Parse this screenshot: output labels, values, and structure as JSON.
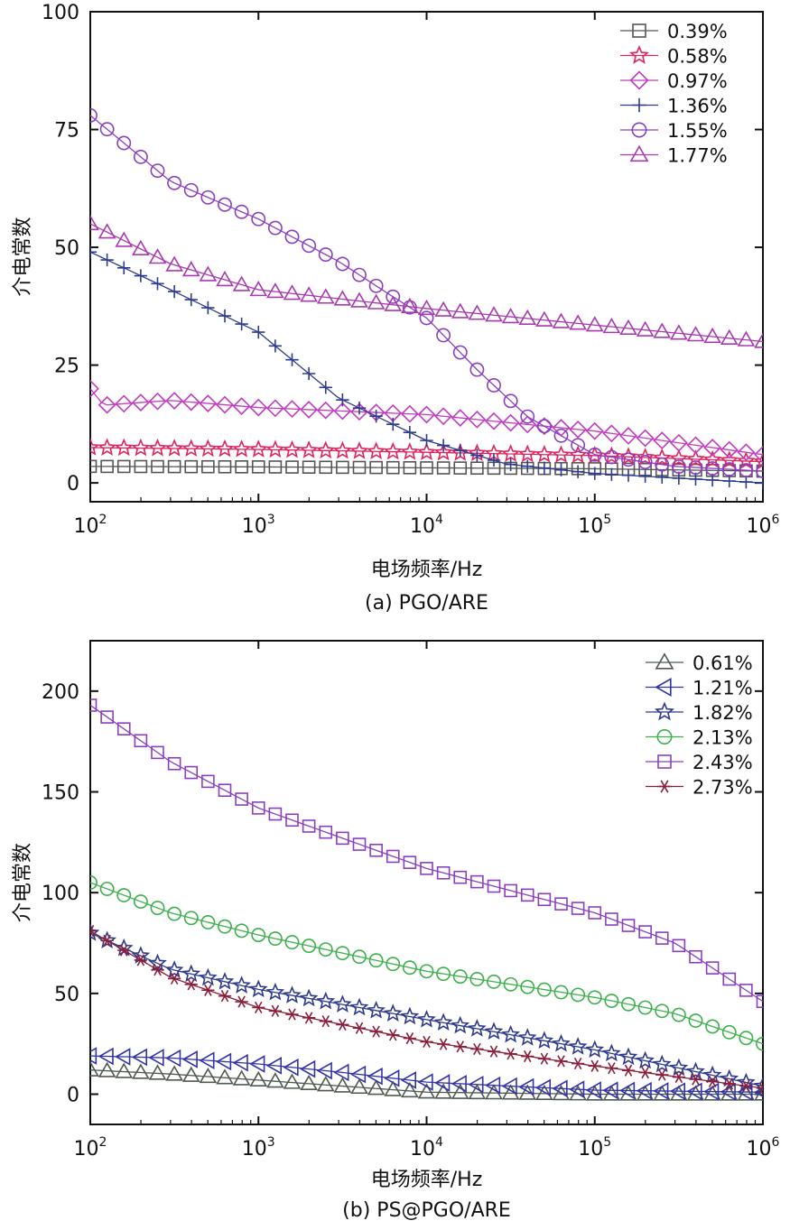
{
  "chart_data": [
    {
      "type": "scatter",
      "caption": "(a) PGO/ARE",
      "xlabel": "电场频率/Hz",
      "ylabel": "介电常数",
      "xscale": "log",
      "xlim": [
        100,
        1000000
      ],
      "ylim": [
        -4,
        100
      ],
      "xticks": [
        {
          "value": 100,
          "base": "10",
          "exp": "2"
        },
        {
          "value": 1000,
          "base": "10",
          "exp": "3"
        },
        {
          "value": 10000,
          "base": "10",
          "exp": "4"
        },
        {
          "value": 100000,
          "base": "10",
          "exp": "5"
        },
        {
          "value": 1000000,
          "base": "10",
          "exp": "6"
        }
      ],
      "yticks": [
        {
          "value": 0,
          "label": "0"
        },
        {
          "value": 25,
          "label": "25"
        },
        {
          "value": 50,
          "label": "50"
        },
        {
          "value": 75,
          "label": "75"
        },
        {
          "value": 100,
          "label": "100"
        }
      ],
      "legend_position": "top-right",
      "series": [
        {
          "name": "0.39%",
          "marker": "square",
          "color": "#555555",
          "points": [
            [
              100,
              3.5
            ],
            [
              1000,
              3.4
            ],
            [
              10000,
              3.2
            ],
            [
              100000,
              3.0
            ],
            [
              1000000,
              2.5
            ]
          ]
        },
        {
          "name": "0.58%",
          "marker": "star",
          "color": "#e0245e",
          "points": [
            [
              100,
              7.5
            ],
            [
              1000,
              7.1
            ],
            [
              10000,
              6.5
            ],
            [
              100000,
              5.8
            ],
            [
              1000000,
              4.5
            ]
          ]
        },
        {
          "name": "0.97%",
          "marker": "diamond",
          "color": "#c03cc0",
          "points": [
            [
              100,
              20
            ],
            [
              120,
              16.5
            ],
            [
              300,
              17.5
            ],
            [
              1000,
              16
            ],
            [
              10000,
              14.5
            ],
            [
              100000,
              11
            ],
            [
              1000000,
              6
            ]
          ]
        },
        {
          "name": "1.36%",
          "marker": "plus",
          "color": "#2e3b8e",
          "points": [
            [
              100,
              49
            ],
            [
              300,
              41
            ],
            [
              1000,
              32
            ],
            [
              3000,
              18
            ],
            [
              10000,
              9
            ],
            [
              30000,
              4
            ],
            [
              100000,
              2
            ],
            [
              1000000,
              0
            ]
          ]
        },
        {
          "name": "1.55%",
          "marker": "circle",
          "color": "#8b3fc0",
          "points": [
            [
              100,
              78
            ],
            [
              300,
              64
            ],
            [
              1000,
              56
            ],
            [
              3000,
              47
            ],
            [
              6000,
              40
            ],
            [
              10000,
              35
            ],
            [
              20000,
              24
            ],
            [
              40000,
              14
            ],
            [
              100000,
              6
            ],
            [
              300000,
              3.5
            ],
            [
              1000000,
              2.5
            ]
          ]
        },
        {
          "name": "1.77%",
          "marker": "triangle",
          "color": "#a83ab0",
          "points": [
            [
              100,
              55
            ],
            [
              300,
              46.5
            ],
            [
              1000,
              41
            ],
            [
              10000,
              37
            ],
            [
              100000,
              33.5
            ],
            [
              1000000,
              30
            ]
          ]
        }
      ]
    },
    {
      "type": "scatter",
      "caption": "(b) PS@PGO/ARE",
      "xlabel": "电场频率/Hz",
      "ylabel": "介电常数",
      "xscale": "log",
      "xlim": [
        100,
        1000000
      ],
      "ylim": [
        -15,
        225
      ],
      "xticks": [
        {
          "value": 100,
          "base": "10",
          "exp": "2"
        },
        {
          "value": 1000,
          "base": "10",
          "exp": "3"
        },
        {
          "value": 10000,
          "base": "10",
          "exp": "4"
        },
        {
          "value": 100000,
          "base": "10",
          "exp": "5"
        },
        {
          "value": 1000000,
          "base": "10",
          "exp": "6"
        }
      ],
      "yticks": [
        {
          "value": 0,
          "label": "0"
        },
        {
          "value": 50,
          "label": "50"
        },
        {
          "value": 100,
          "label": "100"
        },
        {
          "value": 150,
          "label": "150"
        },
        {
          "value": 200,
          "label": "200"
        }
      ],
      "legend_position": "top-right",
      "series": [
        {
          "name": "0.61%",
          "marker": "triangle",
          "color": "#4f5a50",
          "points": [
            [
              100,
              12
            ],
            [
              300,
              10
            ],
            [
              1000,
              7
            ],
            [
              10000,
              1
            ],
            [
              100000,
              0
            ],
            [
              1000000,
              0
            ]
          ]
        },
        {
          "name": "1.21%",
          "marker": "triangle-left",
          "color": "#3333aa",
          "points": [
            [
              100,
              19
            ],
            [
              300,
              18
            ],
            [
              1000,
              15
            ],
            [
              3000,
              11
            ],
            [
              10000,
              6
            ],
            [
              100000,
              2
            ],
            [
              1000000,
              1
            ]
          ]
        },
        {
          "name": "1.82%",
          "marker": "star",
          "color": "#2e3b8e",
          "points": [
            [
              100,
              80
            ],
            [
              300,
              62
            ],
            [
              1000,
              52
            ],
            [
              10000,
              37
            ],
            [
              100000,
              22
            ],
            [
              1000000,
              4
            ]
          ]
        },
        {
          "name": "2.13%",
          "marker": "circle",
          "color": "#3cb04a",
          "points": [
            [
              100,
              105
            ],
            [
              300,
              90
            ],
            [
              1000,
              79
            ],
            [
              10000,
              61
            ],
            [
              100000,
              48
            ],
            [
              300000,
              40
            ],
            [
              1000000,
              25
            ]
          ]
        },
        {
          "name": "2.43%",
          "marker": "square",
          "color": "#8a3fc0",
          "points": [
            [
              100,
              193
            ],
            [
              300,
              165
            ],
            [
              1000,
              142
            ],
            [
              10000,
              112
            ],
            [
              100000,
              90
            ],
            [
              300000,
              75
            ],
            [
              1000000,
              46
            ]
          ]
        },
        {
          "name": "2.73%",
          "marker": "asterisk",
          "color": "#8a1f3a",
          "points": [
            [
              100,
              81
            ],
            [
              300,
              58
            ],
            [
              1000,
              43
            ],
            [
              10000,
              26
            ],
            [
              100000,
              14
            ],
            [
              1000000,
              3
            ]
          ]
        }
      ]
    }
  ]
}
